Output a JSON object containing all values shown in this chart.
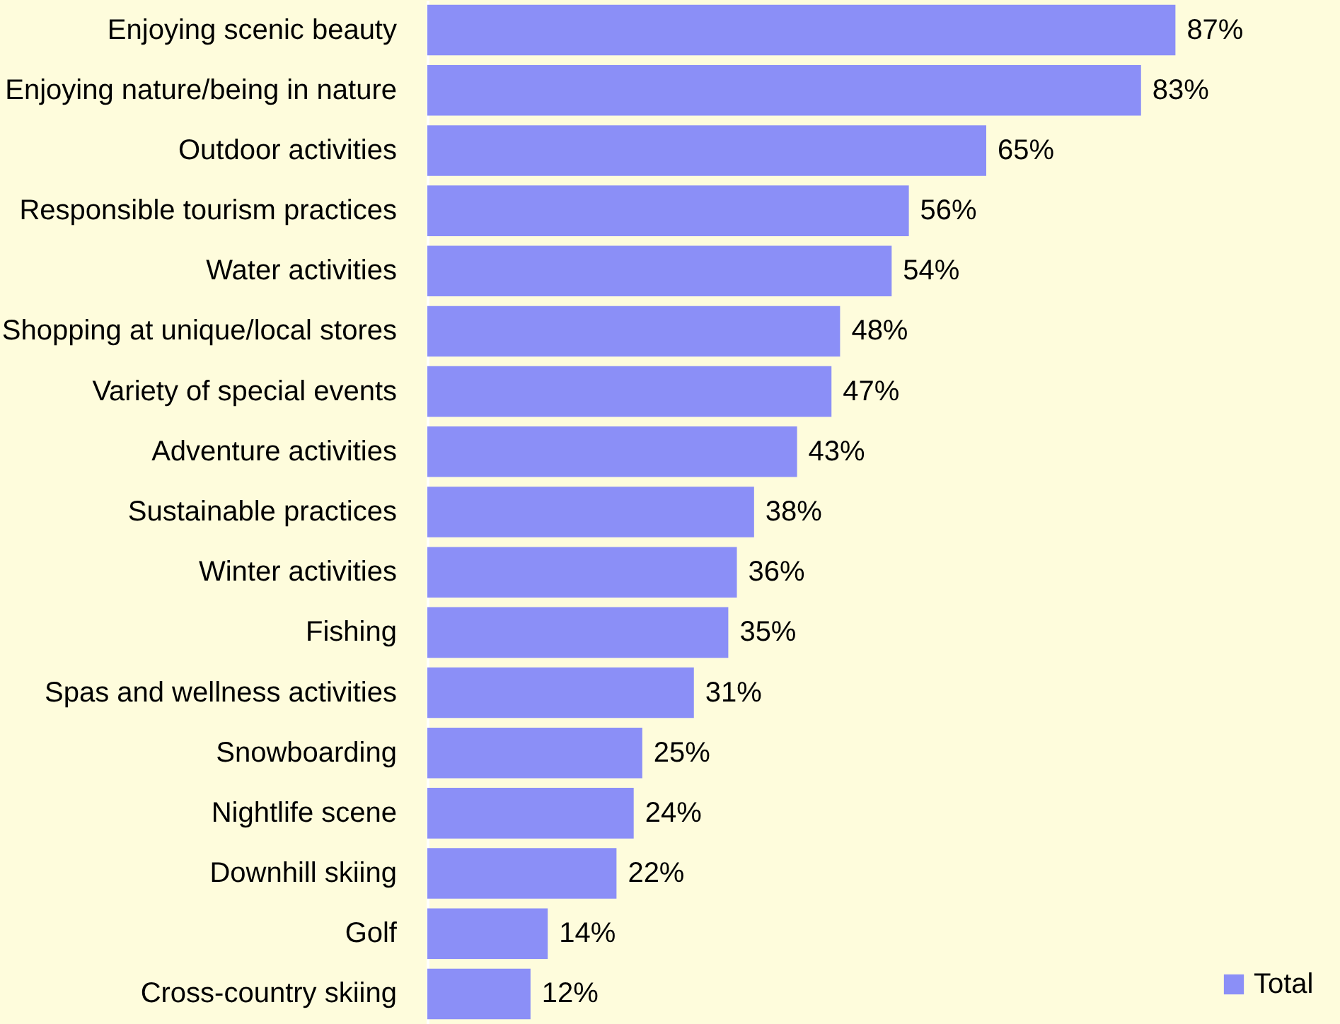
{
  "chart_data": {
    "type": "bar",
    "orientation": "horizontal",
    "legend": "bottom right",
    "categories": [
      "Enjoying scenic beauty",
      "Enjoying nature/being in nature",
      "Outdoor activities",
      "Responsible tourism practices",
      "Water activities",
      "Shopping at unique/local stores",
      "Variety of special events",
      "Adventure activities",
      "Sustainable practices",
      "Winter activities",
      "Fishing",
      "Spas and wellness activities",
      "Snowboarding",
      "Nightlife scene",
      "Downhill skiing",
      "Golf",
      "Cross-country skiing"
    ],
    "series": [
      {
        "name": "Total",
        "color": "#8b8ff7",
        "values": [
          87,
          83,
          65,
          56,
          54,
          48,
          47,
          43,
          38,
          36,
          35,
          31,
          25,
          24,
          22,
          14,
          12
        ],
        "value_labels": [
          "87%",
          "83%",
          "65%",
          "56%",
          "54%",
          "48%",
          "47%",
          "43%",
          "38%",
          "36%",
          "35%",
          "31%",
          "25%",
          "24%",
          "22%",
          "14%",
          "12%"
        ]
      }
    ]
  }
}
